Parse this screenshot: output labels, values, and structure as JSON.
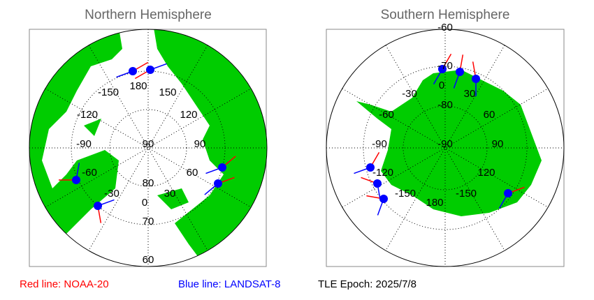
{
  "panels": [
    {
      "title": "Northern Hemisphere",
      "labels": [
        "-150",
        "180",
        "150",
        "-120",
        "120",
        "-90",
        "90",
        "90",
        "-60",
        "60",
        "-30",
        "80",
        "30",
        "0",
        "70",
        "60"
      ]
    },
    {
      "title": "Southern Hemisphere",
      "labels": [
        "-60",
        "-70",
        "0",
        "-30",
        "30",
        "-80",
        "-60",
        "60",
        "-90",
        "-90",
        "90",
        "-120",
        "120",
        "-150",
        "180",
        "-150"
      ]
    }
  ],
  "legend": {
    "red": "Red line: NOAA-20",
    "blue": "Blue line: LANDSAT-8",
    "epoch": "TLE Epoch: 2025/7/8"
  }
}
